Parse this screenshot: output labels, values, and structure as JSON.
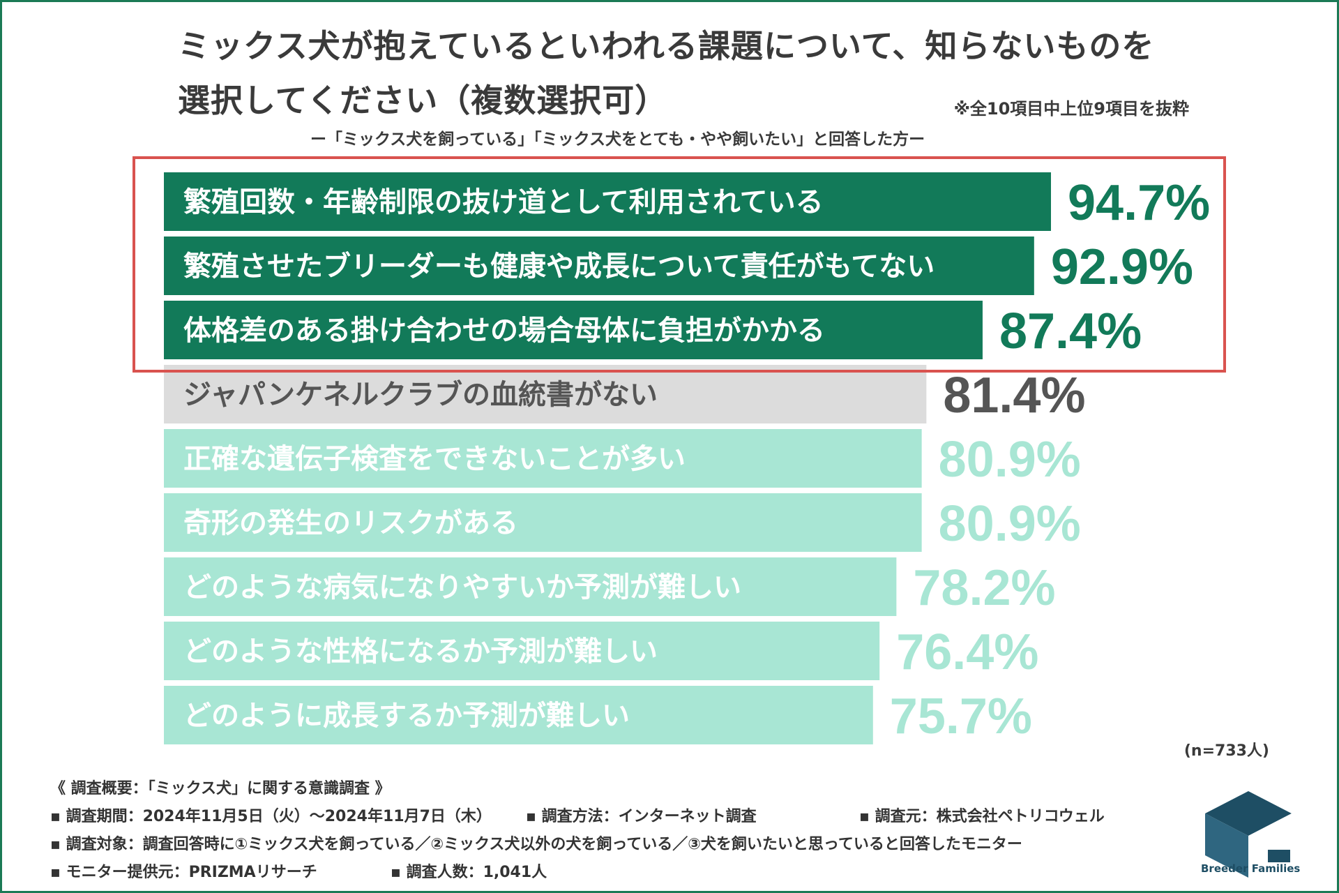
{
  "title_line1": "ミックス犬が抱えているといわれる課題について、知らないものを",
  "title_line2": "選択してください（複数選択可）",
  "note": "※全10項目中上位9項目を抜粋",
  "subtitle": "ー「ミックス犬を飼っている」「ミックス犬をとても・やや飼いたい」と回答した方ー",
  "sample_size": "(n=733人)",
  "colors": {
    "highlight": "#127a59",
    "neutral_bar": "#dcdcdc",
    "neutral_text": "#555555",
    "light_bar": "#a8e6d4",
    "box": "#d9534f"
  },
  "chart_data": {
    "type": "bar",
    "orientation": "horizontal",
    "xlim": [
      0,
      100
    ],
    "categories": [
      "繁殖回数・年齢制限の抜け道として利用されている",
      "繁殖させたブリーダーも健康や成長について責任がもてない",
      "体格差のある掛け合わせの場合母体に負担がかかる",
      "ジャパンケネルクラブの血統書がない",
      "正確な遺伝子検査をできないことが多い",
      "奇形の発生のリスクがある",
      "どのような病気になりやすいか予測が難しい",
      "どのような性格になるか予測が難しい",
      "どのように成長するか予測が難しい"
    ],
    "values": [
      94.7,
      92.9,
      87.4,
      81.4,
      80.9,
      80.9,
      78.2,
      76.4,
      75.7
    ],
    "value_labels": [
      "94.7%",
      "92.9%",
      "87.4%",
      "81.4%",
      "80.9%",
      "80.9%",
      "78.2%",
      "76.4%",
      "75.7%"
    ],
    "groups": [
      "highlight",
      "highlight",
      "highlight",
      "neutral",
      "light",
      "light",
      "light",
      "light",
      "light"
    ]
  },
  "footer": {
    "header": "《 調査概要：「ミックス犬」に関する意識調査 》",
    "period": "▪ 調査期間：2024年11月5日（火）～2024年11月7日（木）",
    "method": "▪ 調査方法：インターネット調査",
    "source": "▪ 調査元：株式会社ペトリコウェル",
    "target": "▪ 調査対象：調査回答時に①ミックス犬を飼っている／②ミックス犬以外の犬を飼っている／③犬を飼いたいと思っていると回答したモニター",
    "provider": "▪ モニター提供元：PRIZMAリサーチ",
    "count": "▪ 調査人数：1,041人"
  },
  "logo_text": "Breeder Families"
}
